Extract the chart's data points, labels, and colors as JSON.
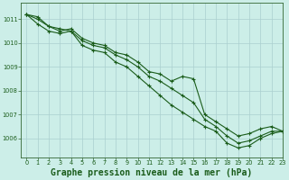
{
  "background_color": "#cceee8",
  "grid_color": "#aacfcf",
  "line_color": "#1a5c1a",
  "marker_color": "#1a5c1a",
  "title": "Graphe pression niveau de la mer (hPa)",
  "title_fontsize": 7.0,
  "xlim": [
    -0.5,
    23
  ],
  "ylim": [
    1005.2,
    1011.7
  ],
  "yticks": [
    1006,
    1007,
    1008,
    1009,
    1010,
    1011
  ],
  "xticks": [
    0,
    1,
    2,
    3,
    4,
    5,
    6,
    7,
    8,
    9,
    10,
    11,
    12,
    13,
    14,
    15,
    16,
    17,
    18,
    19,
    20,
    21,
    22,
    23
  ],
  "series": [
    {
      "x": [
        0,
        1,
        2,
        3,
        4,
        5,
        6,
        7,
        8,
        9,
        10,
        11,
        12,
        13,
        14,
        15,
        16,
        17,
        18,
        19,
        20,
        21,
        22,
        23
      ],
      "y": [
        1011.2,
        1011.1,
        1010.7,
        1010.5,
        1010.6,
        1010.2,
        1010.0,
        1009.9,
        1009.6,
        1009.5,
        1009.2,
        1008.8,
        1008.7,
        1008.4,
        1008.6,
        1008.5,
        1007.0,
        1006.7,
        1006.4,
        1006.1,
        1006.2,
        1006.4,
        1006.5,
        1006.3
      ]
    },
    {
      "x": [
        0,
        1,
        2,
        3,
        4,
        5,
        6,
        7,
        8,
        9,
        10,
        11,
        12,
        13,
        14,
        15,
        16,
        17,
        18,
        19,
        20,
        21,
        22,
        23
      ],
      "y": [
        1011.2,
        1011.0,
        1010.7,
        1010.6,
        1010.5,
        1010.1,
        1009.9,
        1009.8,
        1009.5,
        1009.3,
        1009.0,
        1008.6,
        1008.4,
        1008.1,
        1007.8,
        1007.5,
        1006.8,
        1006.5,
        1006.1,
        1005.8,
        1005.9,
        1006.1,
        1006.3,
        1006.3
      ]
    },
    {
      "x": [
        0,
        1,
        2,
        3,
        4,
        5,
        6,
        7,
        8,
        9,
        10,
        11,
        12,
        13,
        14,
        15,
        16,
        17,
        18,
        19,
        20,
        21,
        22,
        23
      ],
      "y": [
        1011.2,
        1010.8,
        1010.5,
        1010.4,
        1010.5,
        1009.9,
        1009.7,
        1009.6,
        1009.2,
        1009.0,
        1008.6,
        1008.2,
        1007.8,
        1007.4,
        1007.1,
        1006.8,
        1006.5,
        1006.3,
        1005.8,
        1005.6,
        1005.7,
        1006.0,
        1006.2,
        1006.3
      ]
    }
  ]
}
